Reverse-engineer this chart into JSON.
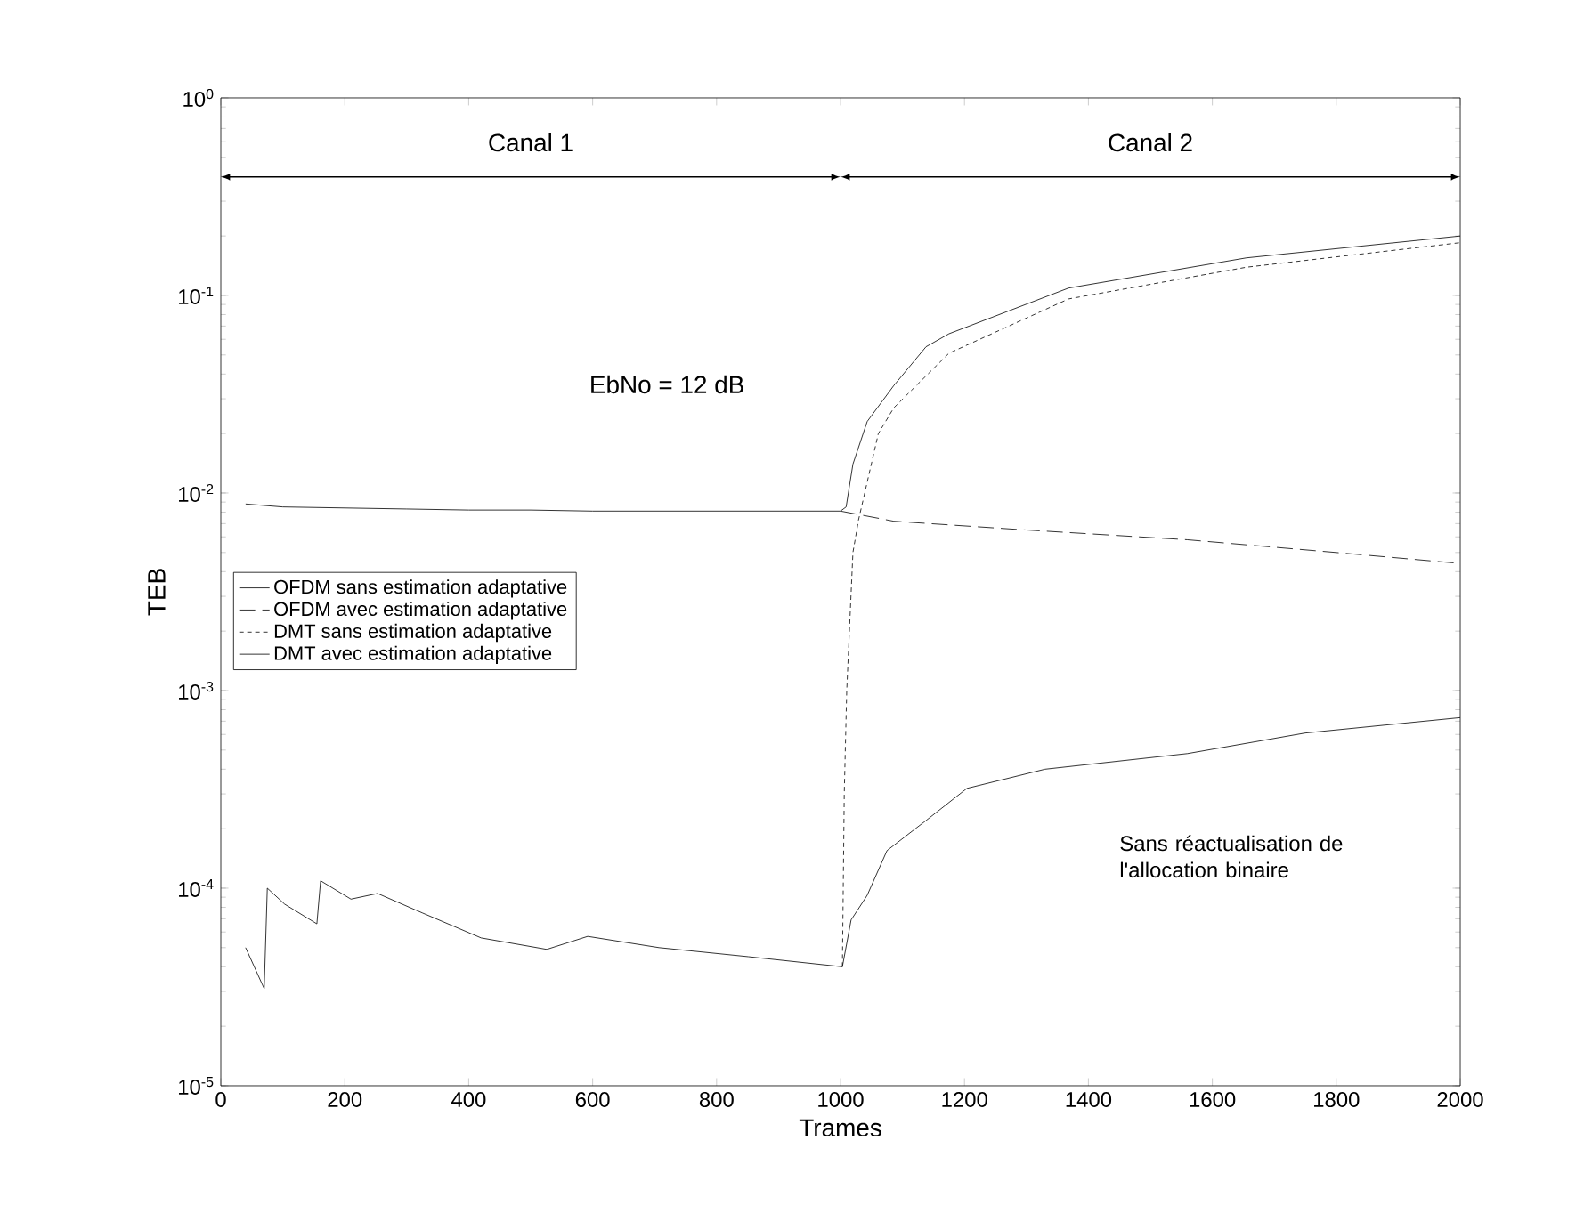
{
  "chart_data": {
    "type": "line",
    "xlabel": "Trames",
    "ylabel": "TEB",
    "log": "y",
    "xlim": [
      0,
      2000
    ],
    "ylim": [
      1e-05,
      1
    ],
    "xticks": [
      0,
      200,
      400,
      600,
      800,
      1000,
      1200,
      1400,
      1600,
      1800,
      2000
    ],
    "yticks": [
      {
        "value": 1e-05,
        "label": "10$^{-5}$"
      },
      {
        "value": 0.0001,
        "label": "10$^{-4}$"
      },
      {
        "value": 0.001,
        "label": "10$^{-3}$"
      },
      {
        "value": 0.01,
        "label": "10$^{-2}$"
      },
      {
        "value": 0.1,
        "label": "10$^{-1}$"
      },
      {
        "value": 1,
        "label": "10$^{0}$"
      }
    ],
    "grid": false,
    "legend": "left",
    "marker": "none",
    "series": [
      {
        "name": "OFDM sans estimation adaptative",
        "color": "#000000",
        "line_style": "solid",
        "x": [
          40,
          100,
          200,
          300,
          400,
          500,
          600,
          700,
          800,
          900,
          1000,
          1009,
          1020,
          1043,
          1086,
          1138,
          1175,
          1368,
          1655,
          2000
        ],
        "values": [
          0.0088,
          0.0085,
          0.0084,
          0.0083,
          0.0082,
          0.0082,
          0.0081,
          0.0081,
          0.0081,
          0.0081,
          0.0081,
          0.0085,
          0.014,
          0.023,
          0.035,
          0.055,
          0.064,
          0.109,
          0.155,
          0.2
        ]
      },
      {
        "name": "OFDM avec estimation adaptative",
        "color": "#000000",
        "line_style": "dashed",
        "x": [
          1000,
          1086,
          1300,
          1560,
          1800,
          2000
        ],
        "values": [
          0.0081,
          0.0072,
          0.0065,
          0.0058,
          0.005,
          0.0044
        ]
      },
      {
        "name": "DMT sans estimation adaptative",
        "color": "#000000",
        "line_style": "dotted",
        "x": [
          1003,
          1006,
          1010,
          1020,
          1029,
          1061,
          1086,
          1175,
          1368,
          1655,
          2000
        ],
        "values": [
          4e-05,
          0.0003,
          0.001,
          0.005,
          0.0073,
          0.02,
          0.027,
          0.051,
          0.096,
          0.139,
          0.185
        ]
      },
      {
        "name": "DMT avec estimation adaptative",
        "color": "#000000",
        "line_style": "solid",
        "x": [
          40,
          70,
          75,
          103,
          155,
          161,
          210,
          253,
          325,
          420,
          526,
          592,
          707,
          851,
          1003,
          1017,
          1043,
          1075,
          1138,
          1204,
          1330,
          1560,
          1750,
          2000
        ],
        "values": [
          5e-05,
          3.1e-05,
          0.0001,
          8.3e-05,
          6.6e-05,
          0.000109,
          8.8e-05,
          9.4e-05,
          7.5e-05,
          5.6e-05,
          4.9e-05,
          5.7e-05,
          5e-05,
          4.5e-05,
          4e-05,
          6.9e-05,
          9.2e-05,
          0.000155,
          0.00022,
          0.00032,
          0.0004,
          0.00048,
          0.00061,
          0.00073
        ]
      }
    ],
    "annotations": [
      "Canal 1",
      "Canal 2",
      "EbNo = 12 dB",
      "Sans réactualisation de l'allocation binaire"
    ]
  }
}
